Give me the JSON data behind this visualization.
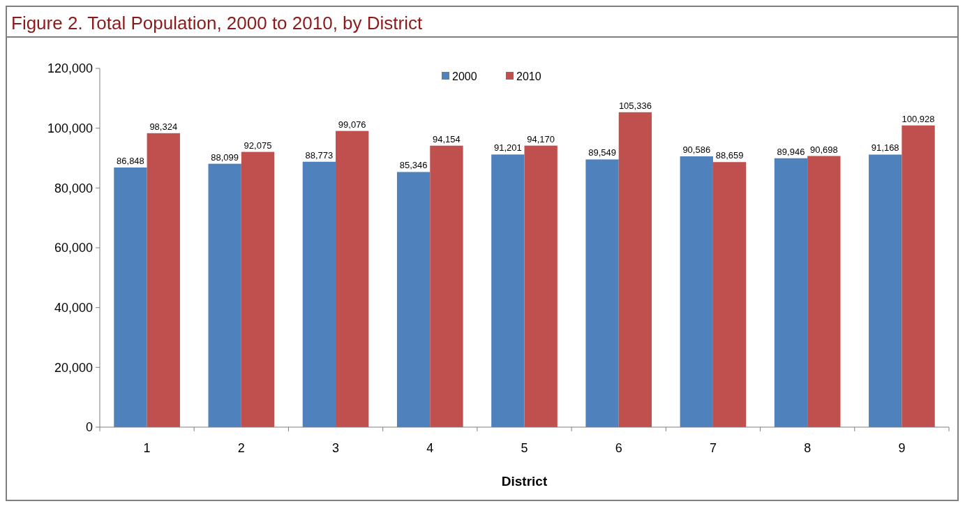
{
  "chart_data": {
    "type": "bar",
    "title": "Figure 2. Total Population, 2000 to 2010, by District",
    "xlabel": "District",
    "categories": [
      "1",
      "2",
      "3",
      "4",
      "5",
      "6",
      "7",
      "8",
      "9"
    ],
    "series": [
      {
        "name": "2000",
        "color": "#4f81bd",
        "values": [
          86848,
          88099,
          88773,
          85346,
          91201,
          89549,
          90586,
          89946,
          91168
        ],
        "value_labels": [
          "86,848",
          "88,099",
          "88,773",
          "85,346",
          "91,201",
          "89,549",
          "90,586",
          "89,946",
          "91,168"
        ]
      },
      {
        "name": "2010",
        "color": "#c0504d",
        "values": [
          98324,
          92075,
          99076,
          94154,
          94170,
          105336,
          88659,
          90698,
          100928
        ],
        "value_labels": [
          "98,324",
          "92,075",
          "99,076",
          "94,154",
          "94,170",
          "105,336",
          "88,659",
          "90,698",
          "100,928"
        ]
      }
    ],
    "ylim": [
      0,
      120000
    ],
    "yticks": [
      {
        "value": 0,
        "label": "0"
      },
      {
        "value": 20000,
        "label": "20,000"
      },
      {
        "value": 40000,
        "label": "40,000"
      },
      {
        "value": 60000,
        "label": "60,000"
      },
      {
        "value": 80000,
        "label": "80,000"
      },
      {
        "value": 100000,
        "label": "100,000"
      },
      {
        "value": 120000,
        "label": "120,000"
      }
    ],
    "legend": "top",
    "grid": false
  }
}
